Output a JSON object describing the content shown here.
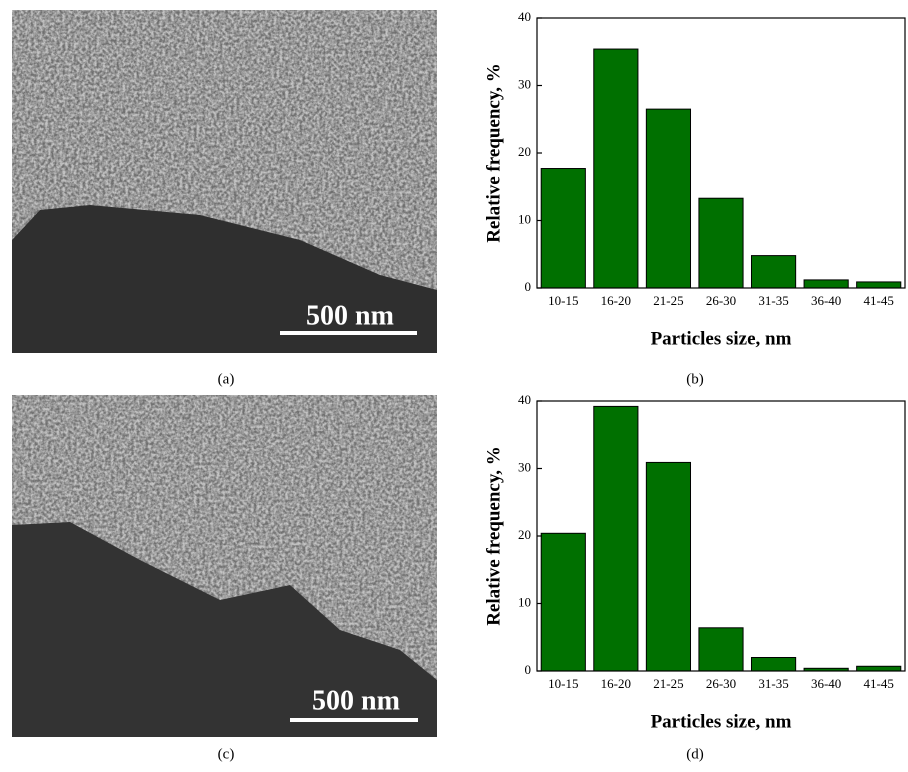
{
  "images": [
    {
      "scale_label": "500 nm",
      "caption": "(a)"
    },
    {
      "scale_label": "500 nm",
      "caption": "(c)"
    }
  ],
  "chart_data": [
    {
      "type": "bar",
      "caption": "(b)",
      "x_label": "Particles size, nm",
      "y_label": "Relative frequency, %",
      "categories": [
        "10-15",
        "16-20",
        "21-25",
        "26-30",
        "31-35",
        "36-40",
        "41-45"
      ],
      "values": [
        17.7,
        35.4,
        26.5,
        13.3,
        4.8,
        1.2,
        0.9
      ],
      "color": "#007000",
      "ylim": [
        0,
        40
      ],
      "yticks": [
        0,
        10,
        20,
        30,
        40
      ]
    },
    {
      "type": "bar",
      "caption": "(d)",
      "x_label": "Particles size, nm",
      "y_label": "Relative frequency, %",
      "categories": [
        "10-15",
        "16-20",
        "21-25",
        "26-30",
        "31-35",
        "36-40",
        "41-45"
      ],
      "values": [
        20.4,
        39.2,
        30.9,
        6.4,
        2.0,
        0.4,
        0.7
      ],
      "color": "#007000",
      "ylim": [
        0,
        40
      ],
      "yticks": [
        0,
        10,
        20,
        30,
        40
      ]
    }
  ]
}
